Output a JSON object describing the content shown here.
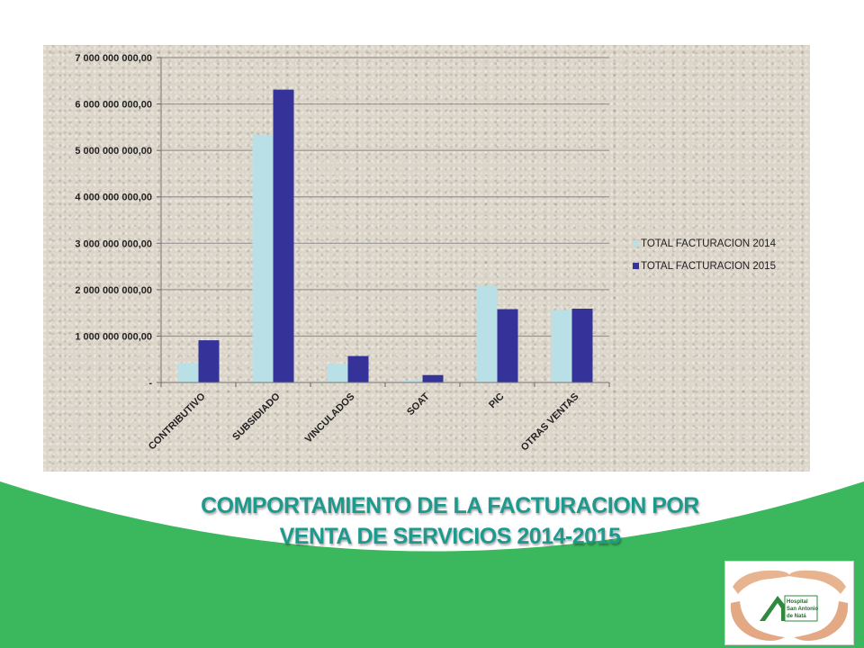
{
  "caption": {
    "line1": "COMPORTAMIENTO DE LA FACTURACION POR",
    "line2": "VENTA DE SERVICIOS 2014-2015"
  },
  "colors": {
    "green_band": "#3bb75d",
    "caption_text": "#1c9a8e",
    "series_2014": "#b9e0e6",
    "series_2015": "#353399",
    "chart_bg": "#dbd4c8"
  },
  "logo": {
    "text": "Hospital San Antonio de Natá"
  },
  "chart_data": {
    "type": "bar",
    "categories": [
      "CONTRIBUTIVO",
      "SUBSIDIADO",
      "VINCULADOS",
      "SOAT",
      "PIC",
      "OTRAS VENTAS"
    ],
    "series": [
      {
        "name": "TOTAL FACTURACION 2014",
        "values": [
          420000000,
          5330000000,
          400000000,
          50000000,
          2080000000,
          1560000000
        ]
      },
      {
        "name": "TOTAL FACTURACION 2015",
        "values": [
          910000000,
          6310000000,
          570000000,
          160000000,
          1580000000,
          1590000000
        ]
      }
    ],
    "ylim": [
      0,
      7000000000
    ],
    "yticks": [
      "-",
      "1 000 000 000,00",
      "2 000 000 000,00",
      "3 000 000 000,00",
      "4 000 000 000,00",
      "5 000 000 000,00",
      "6 000 000 000,00",
      "7 000 000 000,00"
    ],
    "grid": true,
    "legend": "right",
    "title": "",
    "xlabel": "",
    "ylabel": ""
  }
}
